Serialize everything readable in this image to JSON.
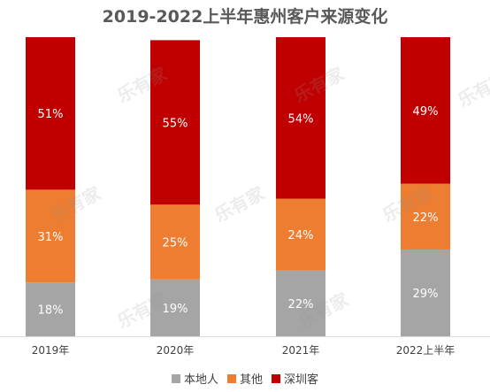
{
  "chart_data": {
    "type": "bar",
    "stacked": true,
    "percent_stacked": true,
    "title": "2019-2022上半年惠州客户来源变化",
    "categories": [
      "2019年",
      "2020年",
      "2021年",
      "2022上半年"
    ],
    "series": [
      {
        "name": "本地人",
        "values": [
          18,
          19,
          22,
          29
        ],
        "labels": [
          "18%",
          "19%",
          "22%",
          "29%"
        ],
        "color": "#a5a5a5"
      },
      {
        "name": "其他",
        "values": [
          31,
          25,
          24,
          22
        ],
        "labels": [
          "31%",
          "25%",
          "24%",
          "22%"
        ],
        "color": "#ed7d31"
      },
      {
        "name": "深圳客",
        "values": [
          51,
          55,
          54,
          49
        ],
        "labels": [
          "51%",
          "55%",
          "54%",
          "49%"
        ],
        "color": "#c00000"
      }
    ],
    "ylim": [
      0,
      100
    ],
    "legend_position": "bottom",
    "grid": false
  },
  "watermark": "乐有家"
}
